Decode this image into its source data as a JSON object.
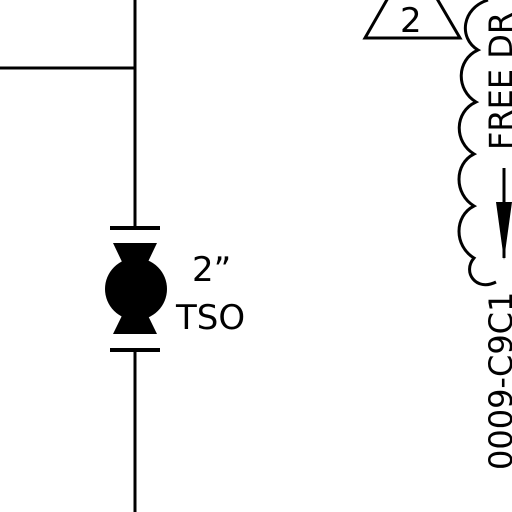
{
  "diagram": {
    "valve": {
      "size_label": "2”",
      "type_label": "TSO"
    },
    "revision_marker": {
      "number": "2"
    },
    "vertical_note": {
      "upper_text": "FREE DR",
      "lower_text": "0009-C9C1"
    },
    "colors": {
      "line": "#000000",
      "background": "#ffffff"
    }
  }
}
